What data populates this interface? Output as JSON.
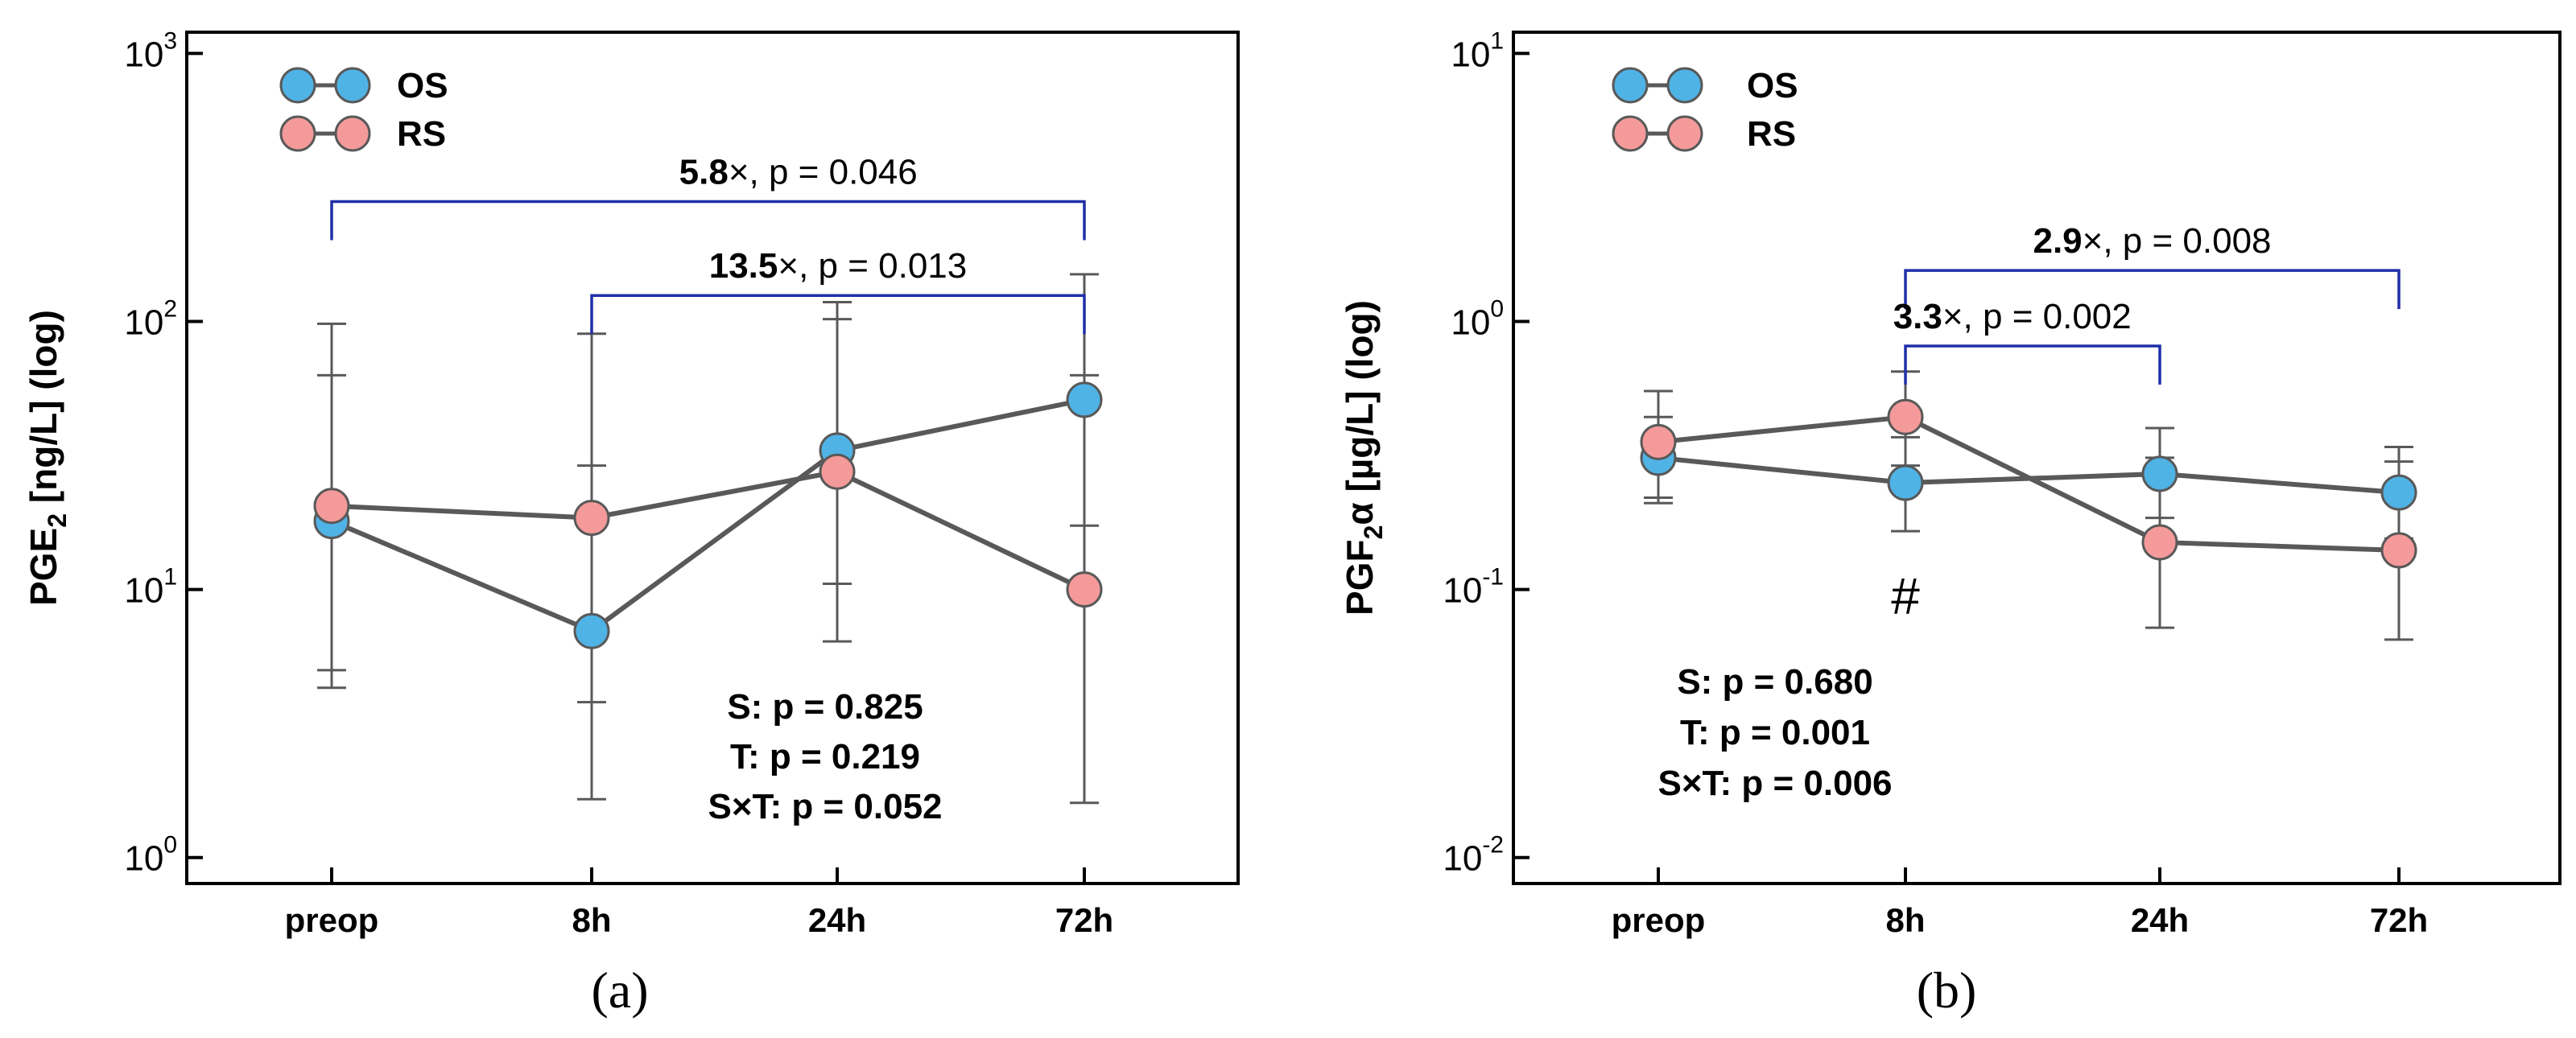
{
  "figure": {
    "labels": [
      "(a)",
      "(b)"
    ]
  },
  "chart_data": [
    {
      "type": "line",
      "panel_label": "(a)",
      "ylabel": "PGE2 [ng/L] (log)",
      "ylabel_parts": [
        "PGE",
        "2",
        " [ng/L] (log)"
      ],
      "categories": [
        "preop",
        "8h",
        "24h",
        "72h"
      ],
      "y_scale": "log",
      "ylim": [
        0.8,
        1200
      ],
      "yticks": [
        {
          "value": 1,
          "exp": "0"
        },
        {
          "value": 10,
          "exp": "1"
        },
        {
          "value": 100,
          "exp": "2"
        },
        {
          "value": 1000,
          "exp": "3"
        }
      ],
      "tick_base": "10",
      "legend_position": "top-left",
      "series": [
        {
          "name": "OS",
          "color": "#4fb3e6",
          "values": [
            18,
            7,
            33,
            51
          ],
          "err_low": [
            5.0,
            1.65,
            10.5,
            17.3
          ],
          "err_high": [
            63,
            29,
            102,
            150
          ]
        },
        {
          "name": "RS",
          "color": "#f59a9a",
          "values": [
            20.5,
            18.5,
            27.5,
            10
          ],
          "err_low": [
            4.3,
            3.8,
            6.4,
            1.6
          ],
          "err_high": [
            98,
            90,
            118,
            63
          ]
        }
      ],
      "brackets": [
        {
          "from": 0,
          "to": 3,
          "y": 280,
          "bold": "5.8",
          "rest": "×, p = 0.046",
          "label_at": 0.62
        },
        {
          "from": 1,
          "to": 3,
          "y": 125,
          "bold": "13.5",
          "rest": "×, p = 0.013",
          "label_at": 0.5
        }
      ],
      "marks": [],
      "stats": [
        "S: p = 0.825",
        "T: p = 0.219",
        "S×T: p = 0.052"
      ]
    },
    {
      "type": "line",
      "panel_label": "(b)",
      "ylabel": "PGF2α [µg/L] (log)",
      "ylabel_parts": [
        "PGF",
        "2",
        "α [µg/L] (log)"
      ],
      "categories": [
        "preop",
        "8h",
        "24h",
        "72h"
      ],
      "y_scale": "log",
      "ylim": [
        0.008,
        12
      ],
      "yticks": [
        {
          "value": 0.01,
          "exp": "-2"
        },
        {
          "value": 0.1,
          "exp": "-1"
        },
        {
          "value": 1,
          "exp": "0"
        },
        {
          "value": 10,
          "exp": "1"
        }
      ],
      "tick_base": "10",
      "legend_position": "top-left",
      "series": [
        {
          "name": "OS",
          "color": "#4fb3e6",
          "values": [
            0.31,
            0.25,
            0.27,
            0.23
          ],
          "err_low": [
            0.22,
            0.165,
            0.185,
            0.155
          ],
          "err_high": [
            0.44,
            0.37,
            0.4,
            0.34
          ]
        },
        {
          "name": "RS",
          "color": "#f59a9a",
          "values": [
            0.355,
            0.44,
            0.15,
            0.14
          ],
          "err_low": [
            0.21,
            0.29,
            0.072,
            0.065
          ],
          "err_high": [
            0.55,
            0.65,
            0.31,
            0.3
          ]
        }
      ],
      "brackets": [
        {
          "from": 1,
          "to": 3,
          "y": 1.55,
          "bold": "2.9",
          "rest": "×, p = 0.008",
          "label_at": 0.5
        },
        {
          "from": 1,
          "to": 2,
          "y": 0.81,
          "bold": "3.3",
          "rest": "×, p = 0.002",
          "label_at": 0.42
        }
      ],
      "marks": [
        {
          "category": 1,
          "y": 0.093,
          "text": "#"
        }
      ],
      "stats": [
        "S: p = 0.680",
        "T: p = 0.001",
        "S×T: p = 0.006"
      ]
    }
  ]
}
